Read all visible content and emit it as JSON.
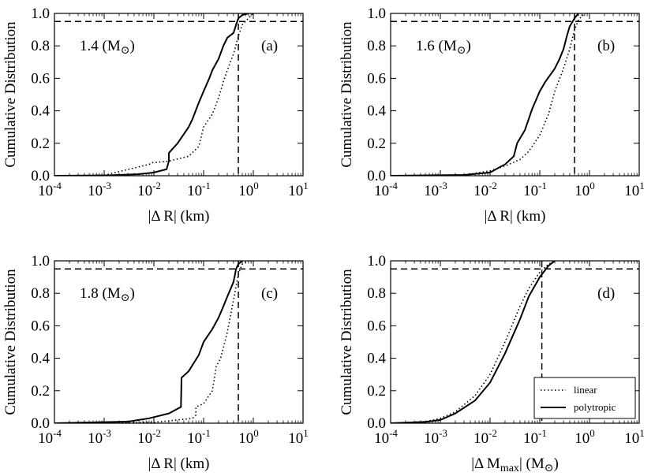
{
  "colors": {
    "background": "#ffffff",
    "ink": "#000000"
  },
  "chart_data": [
    {
      "type": "line",
      "panel": "(a)",
      "mass_label": {
        "value": "1.4",
        "unit": "M",
        "subscript": "⊙"
      },
      "ylabel": "Cumulative Distribution",
      "xlabel": "|Δ R| (km)",
      "xscale": "log",
      "xlim": [
        0.0001,
        10
      ],
      "ylim": [
        0,
        1
      ],
      "xticks": [
        "-4",
        "-3",
        "-2",
        "-1",
        "0",
        "1"
      ],
      "yticks": [
        "0.0",
        "0.2",
        "0.4",
        "0.6",
        "0.8",
        "1.0"
      ],
      "reference_lines": {
        "horizontal": 0.95,
        "vertical": 0.5
      },
      "series": [
        {
          "name": "linear",
          "style": "dotted",
          "points": [
            [
              0.0001,
              0
            ],
            [
              0.001,
              0.003
            ],
            [
              0.008,
              0.07
            ],
            [
              0.009,
              0.08
            ],
            [
              0.02,
              0.09
            ],
            [
              0.05,
              0.12
            ],
            [
              0.08,
              0.18
            ],
            [
              0.1,
              0.3
            ],
            [
              0.15,
              0.38
            ],
            [
              0.2,
              0.48
            ],
            [
              0.25,
              0.58
            ],
            [
              0.3,
              0.65
            ],
            [
              0.4,
              0.75
            ],
            [
              0.5,
              0.86
            ],
            [
              0.6,
              0.93
            ],
            [
              0.8,
              0.97
            ],
            [
              1.0,
              1.0
            ]
          ]
        },
        {
          "name": "polytropic",
          "style": "solid",
          "points": [
            [
              0.0001,
              0
            ],
            [
              0.001,
              0.002
            ],
            [
              0.005,
              0.01
            ],
            [
              0.01,
              0.02
            ],
            [
              0.018,
              0.04
            ],
            [
              0.02,
              0.09
            ],
            [
              0.02,
              0.14
            ],
            [
              0.03,
              0.2
            ],
            [
              0.05,
              0.3
            ],
            [
              0.06,
              0.35
            ],
            [
              0.08,
              0.45
            ],
            [
              0.1,
              0.52
            ],
            [
              0.13,
              0.6
            ],
            [
              0.15,
              0.65
            ],
            [
              0.2,
              0.72
            ],
            [
              0.25,
              0.8
            ],
            [
              0.3,
              0.85
            ],
            [
              0.4,
              0.88
            ],
            [
              0.45,
              0.93
            ],
            [
              0.5,
              0.97
            ],
            [
              0.6,
              0.99
            ],
            [
              0.8,
              1.0
            ]
          ]
        }
      ]
    },
    {
      "type": "line",
      "panel": "(b)",
      "mass_label": {
        "value": "1.6",
        "unit": "M",
        "subscript": "⊙"
      },
      "ylabel": "Cumulative Distribution",
      "xlabel": "|Δ R| (km)",
      "xscale": "log",
      "xlim": [
        0.0001,
        10
      ],
      "ylim": [
        0,
        1
      ],
      "xticks": [
        "-4",
        "-3",
        "-2",
        "-1",
        "0",
        "1"
      ],
      "yticks": [
        "0.0",
        "0.2",
        "0.4",
        "0.6",
        "0.8",
        "1.0"
      ],
      "reference_lines": {
        "horizontal": 0.95,
        "vertical": 0.5
      },
      "series": [
        {
          "name": "linear",
          "style": "dotted",
          "points": [
            [
              0.0001,
              0
            ],
            [
              0.003,
              0.005
            ],
            [
              0.01,
              0.03
            ],
            [
              0.02,
              0.06
            ],
            [
              0.04,
              0.1
            ],
            [
              0.06,
              0.15
            ],
            [
              0.1,
              0.25
            ],
            [
              0.15,
              0.38
            ],
            [
              0.2,
              0.52
            ],
            [
              0.3,
              0.66
            ],
            [
              0.4,
              0.78
            ],
            [
              0.5,
              0.9
            ],
            [
              0.6,
              0.96
            ],
            [
              0.8,
              1.0
            ]
          ]
        },
        {
          "name": "polytropic",
          "style": "solid",
          "points": [
            [
              0.0001,
              0
            ],
            [
              0.003,
              0.005
            ],
            [
              0.01,
              0.02
            ],
            [
              0.015,
              0.05
            ],
            [
              0.02,
              0.07
            ],
            [
              0.03,
              0.12
            ],
            [
              0.035,
              0.2
            ],
            [
              0.05,
              0.28
            ],
            [
              0.06,
              0.35
            ],
            [
              0.07,
              0.41
            ],
            [
              0.1,
              0.52
            ],
            [
              0.13,
              0.58
            ],
            [
              0.2,
              0.66
            ],
            [
              0.25,
              0.72
            ],
            [
              0.3,
              0.78
            ],
            [
              0.35,
              0.86
            ],
            [
              0.4,
              0.92
            ],
            [
              0.5,
              0.97
            ],
            [
              0.6,
              1.0
            ]
          ]
        }
      ]
    },
    {
      "type": "line",
      "panel": "(c)",
      "mass_label": {
        "value": "1.8",
        "unit": "M",
        "subscript": "⊙"
      },
      "ylabel": "Cumulative Distribution",
      "xlabel": "|Δ R| (km)",
      "xscale": "log",
      "xlim": [
        0.0001,
        10
      ],
      "ylim": [
        0,
        1
      ],
      "xticks": [
        "-4",
        "-3",
        "-2",
        "-1",
        "0",
        "1"
      ],
      "yticks": [
        "0.0",
        "0.2",
        "0.4",
        "0.6",
        "0.8",
        "1.0"
      ],
      "reference_lines": {
        "horizontal": 0.95,
        "vertical": 0.5
      },
      "series": [
        {
          "name": "linear",
          "style": "dotted",
          "points": [
            [
              0.0001,
              0
            ],
            [
              0.01,
              0.005
            ],
            [
              0.03,
              0.02
            ],
            [
              0.06,
              0.03
            ],
            [
              0.07,
              0.05
            ],
            [
              0.07,
              0.1
            ],
            [
              0.1,
              0.12
            ],
            [
              0.15,
              0.2
            ],
            [
              0.18,
              0.35
            ],
            [
              0.22,
              0.4
            ],
            [
              0.3,
              0.56
            ],
            [
              0.4,
              0.76
            ],
            [
              0.5,
              0.92
            ],
            [
              0.6,
              0.98
            ],
            [
              0.8,
              1.0
            ]
          ]
        },
        {
          "name": "polytropic",
          "style": "solid",
          "points": [
            [
              0.0001,
              0
            ],
            [
              0.003,
              0.01
            ],
            [
              0.008,
              0.03
            ],
            [
              0.02,
              0.06
            ],
            [
              0.035,
              0.1
            ],
            [
              0.036,
              0.28
            ],
            [
              0.05,
              0.32
            ],
            [
              0.08,
              0.42
            ],
            [
              0.1,
              0.5
            ],
            [
              0.15,
              0.58
            ],
            [
              0.2,
              0.65
            ],
            [
              0.25,
              0.72
            ],
            [
              0.3,
              0.78
            ],
            [
              0.4,
              0.87
            ],
            [
              0.45,
              0.95
            ],
            [
              0.5,
              0.98
            ],
            [
              0.6,
              1.0
            ]
          ]
        }
      ]
    },
    {
      "type": "line",
      "panel": "(d)",
      "ylabel": "Cumulative Distribution",
      "xlabel": "|Δ M",
      "xlabel_sub": "max",
      "xlabel_end": "| (M",
      "xlabel_unit_sub": "⊙",
      "xlabel_close": ")",
      "xscale": "log",
      "xlim": [
        0.0001,
        10
      ],
      "ylim": [
        0,
        1
      ],
      "xticks": [
        "-4",
        "-3",
        "-2",
        "-1",
        "0",
        "1"
      ],
      "yticks": [
        "0.0",
        "0.2",
        "0.4",
        "0.6",
        "0.8",
        "1.0"
      ],
      "reference_lines": {
        "horizontal": 0.95,
        "vertical": 0.11
      },
      "legend": {
        "position": "bottom-right",
        "entries": [
          "linear",
          "polytropic"
        ]
      },
      "series": [
        {
          "name": "linear",
          "style": "dotted",
          "points": [
            [
              0.0001,
              0
            ],
            [
              0.0005,
              0.01
            ],
            [
              0.001,
              0.03
            ],
            [
              0.002,
              0.07
            ],
            [
              0.005,
              0.17
            ],
            [
              0.01,
              0.3
            ],
            [
              0.02,
              0.5
            ],
            [
              0.04,
              0.72
            ],
            [
              0.06,
              0.83
            ],
            [
              0.1,
              0.93
            ],
            [
              0.15,
              0.98
            ],
            [
              0.2,
              1.0
            ]
          ]
        },
        {
          "name": "polytropic",
          "style": "solid",
          "points": [
            [
              0.0001,
              0
            ],
            [
              0.0005,
              0.008
            ],
            [
              0.001,
              0.02
            ],
            [
              0.002,
              0.06
            ],
            [
              0.005,
              0.14
            ],
            [
              0.01,
              0.25
            ],
            [
              0.02,
              0.43
            ],
            [
              0.04,
              0.64
            ],
            [
              0.06,
              0.78
            ],
            [
              0.1,
              0.9
            ],
            [
              0.15,
              0.97
            ],
            [
              0.2,
              1.0
            ]
          ]
        }
      ]
    }
  ]
}
